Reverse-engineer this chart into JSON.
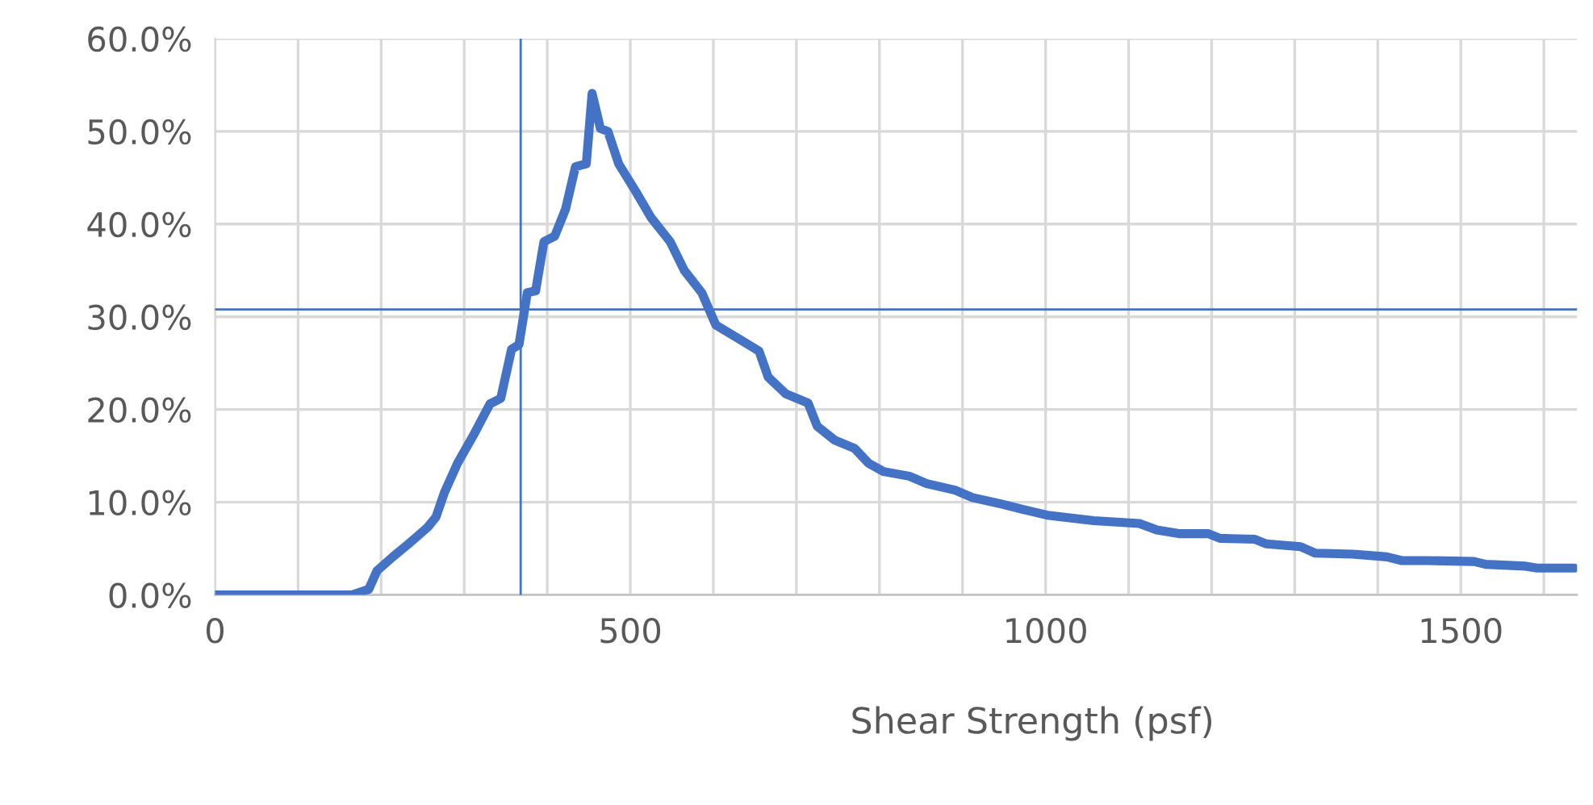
{
  "chart_data": {
    "type": "line",
    "xlabel": "Shear Strength (psf)",
    "x": [
      0,
      165,
      185,
      195,
      214,
      233,
      256,
      266,
      276,
      292,
      311,
      331,
      344,
      357,
      366,
      376,
      386,
      396,
      409,
      422,
      434,
      447,
      454,
      464,
      473,
      486,
      506,
      525,
      548,
      565,
      586,
      603,
      631,
      655,
      666,
      687,
      714,
      725,
      746,
      770,
      787,
      805,
      836,
      857,
      891,
      912,
      947,
      974,
      1002,
      1058,
      1113,
      1134,
      1162,
      1196,
      1210,
      1252,
      1266,
      1307,
      1325,
      1370,
      1411,
      1429,
      1460,
      1516,
      1530,
      1578,
      1592,
      1637
    ],
    "series": [
      {
        "color": "#4472c4",
        "values": [
          0,
          0,
          0.6,
          2.6,
          4.1,
          5.5,
          7.3,
          8.4,
          11,
          14.2,
          17.2,
          20.6,
          21.2,
          26.5,
          27,
          32.6,
          32.8,
          38.1,
          38.7,
          41.6,
          46.2,
          46.5,
          54.1,
          50.3,
          50,
          46.5,
          43.6,
          40.7,
          38.1,
          35,
          32.6,
          29.1,
          27.6,
          26.3,
          23.5,
          21.7,
          20.7,
          18.2,
          16.7,
          15.8,
          14.2,
          13.3,
          12.8,
          12,
          11.3,
          10.5,
          9.8,
          9.2,
          8.6,
          8,
          7.7,
          7,
          6.6,
          6.6,
          6.1,
          6,
          5.5,
          5.2,
          4.5,
          4.4,
          4.1,
          3.7,
          3.7,
          3.6,
          3.3,
          3.1,
          2.9,
          2.9
        ]
      }
    ],
    "xlim": [
      0,
      1640
    ],
    "xticks": [
      0,
      {
        "value": 100,
        "label": null
      },
      {
        "value": 200,
        "label": null
      },
      {
        "value": 300,
        "label": null
      },
      {
        "value": 400,
        "label": null
      },
      500,
      {
        "value": 600,
        "label": null
      },
      {
        "value": 700,
        "label": null
      },
      {
        "value": 800,
        "label": null
      },
      {
        "value": 900,
        "label": null
      },
      1000,
      {
        "value": 1100,
        "label": null
      },
      {
        "value": 1200,
        "label": null
      },
      {
        "value": 1300,
        "label": null
      },
      {
        "value": 1400,
        "label": null
      },
      1500,
      {
        "value": 1600,
        "label": null
      }
    ],
    "ylim": [
      0,
      60
    ],
    "yticks": [
      {
        "value": 0,
        "label": "0.0%"
      },
      {
        "value": 10,
        "label": "10.0%"
      },
      {
        "value": 20,
        "label": "20.0%"
      },
      {
        "value": 30,
        "label": "30.0%"
      },
      {
        "value": 40,
        "label": "40.0%"
      },
      {
        "value": 50,
        "label": "50.0%"
      },
      {
        "value": 60,
        "label": "60.0%"
      }
    ],
    "ref_lines": [
      {
        "axis": "x",
        "value": 368,
        "color": "#4472c4"
      },
      {
        "axis": "y",
        "value": 30.8,
        "color": "#4472c4"
      }
    ],
    "grid": true,
    "line_style": "solid"
  }
}
